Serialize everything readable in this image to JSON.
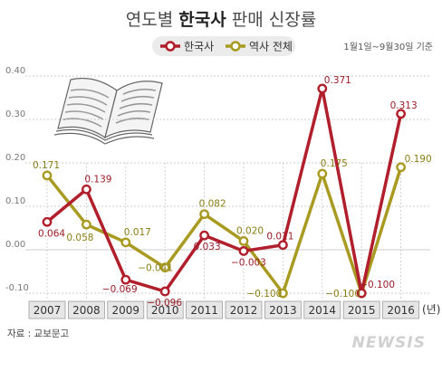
{
  "title_normal": "연도별 ",
  "title_bold": "한국사",
  "title_rest": " 판매 신장률",
  "note": "1월1일~9월30일 기준",
  "unit": "(년)",
  "source": "자료 : 교보문고",
  "watermark": "NEWSIS",
  "colors": {
    "korean_history": "#b01f2b",
    "history_total": "#a99a21"
  },
  "chart_data": {
    "type": "line",
    "x": [
      "2007",
      "2008",
      "2009",
      "2010",
      "2011",
      "2012",
      "2013",
      "2014",
      "2015",
      "2016"
    ],
    "ylim": [
      -0.1,
      0.4
    ],
    "yticks": [
      "0.40",
      "0.30",
      "0.20",
      "0.10",
      "0.00",
      "-0.10"
    ],
    "legend_position": "top-center",
    "series": [
      {
        "name": "한국사",
        "values": [
          0.064,
          0.139,
          -0.069,
          -0.096,
          0.033,
          -0.003,
          0.011,
          0.371,
          -0.1,
          0.313
        ],
        "labels": [
          "0.064",
          "0.139",
          "−0.069",
          "−0.096",
          "0.033",
          "−0.003",
          "0.011",
          "0.371",
          "−0.100",
          "0.313"
        ]
      },
      {
        "name": "역사 전체",
        "values": [
          0.171,
          0.058,
          0.017,
          -0.041,
          0.082,
          0.02,
          -0.1,
          0.175,
          -0.1,
          0.19
        ],
        "labels": [
          "0.171",
          "0.058",
          "0.017",
          "−0.041",
          "0.082",
          "0.020",
          "−0.100",
          "0.175",
          "−0.100",
          "0.190"
        ]
      }
    ]
  }
}
